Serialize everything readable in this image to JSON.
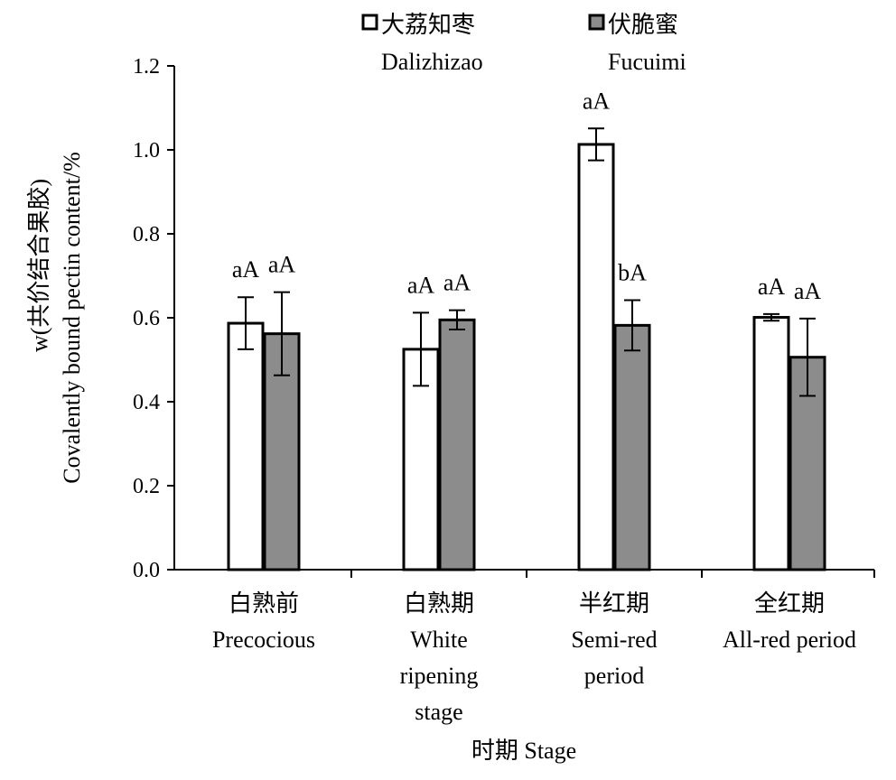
{
  "chart_data": {
    "type": "bar",
    "ylabel_line1": "w(共价结合果胶)",
    "ylabel_line2": "Covalently bound pectin content/%",
    "xlabel": "时期 Stage",
    "ylim": [
      0,
      1.2
    ],
    "yticks": [
      "0.0",
      "0.2",
      "0.4",
      "0.6",
      "0.8",
      "1.0",
      "1.2"
    ],
    "legend_position": "top",
    "categories": [
      {
        "zh": "白熟前",
        "en": [
          "Precocious"
        ]
      },
      {
        "zh": "白熟期",
        "en": [
          "White",
          "ripening",
          "stage"
        ]
      },
      {
        "zh": "半红期",
        "en": [
          "Semi-red",
          "period"
        ]
      },
      {
        "zh": "全红期",
        "en": [
          "All-red period"
        ]
      }
    ],
    "series": [
      {
        "name_zh": "大荔知枣",
        "name_en": "Dalizhizao",
        "color": "#ffffff",
        "values": [
          0.587,
          0.525,
          1.013,
          0.601
        ],
        "errors": [
          0.062,
          0.087,
          0.038,
          0.008
        ],
        "labels": [
          "aA",
          "aA",
          "aA",
          "aA"
        ]
      },
      {
        "name_zh": "伏脆蜜",
        "name_en": "Fucuimi",
        "color": "#8c8c8c",
        "values": [
          0.562,
          0.595,
          0.582,
          0.506
        ],
        "errors": [
          0.099,
          0.023,
          0.06,
          0.092
        ],
        "labels": [
          "aA",
          "aA",
          "bA",
          "aA"
        ]
      }
    ]
  }
}
